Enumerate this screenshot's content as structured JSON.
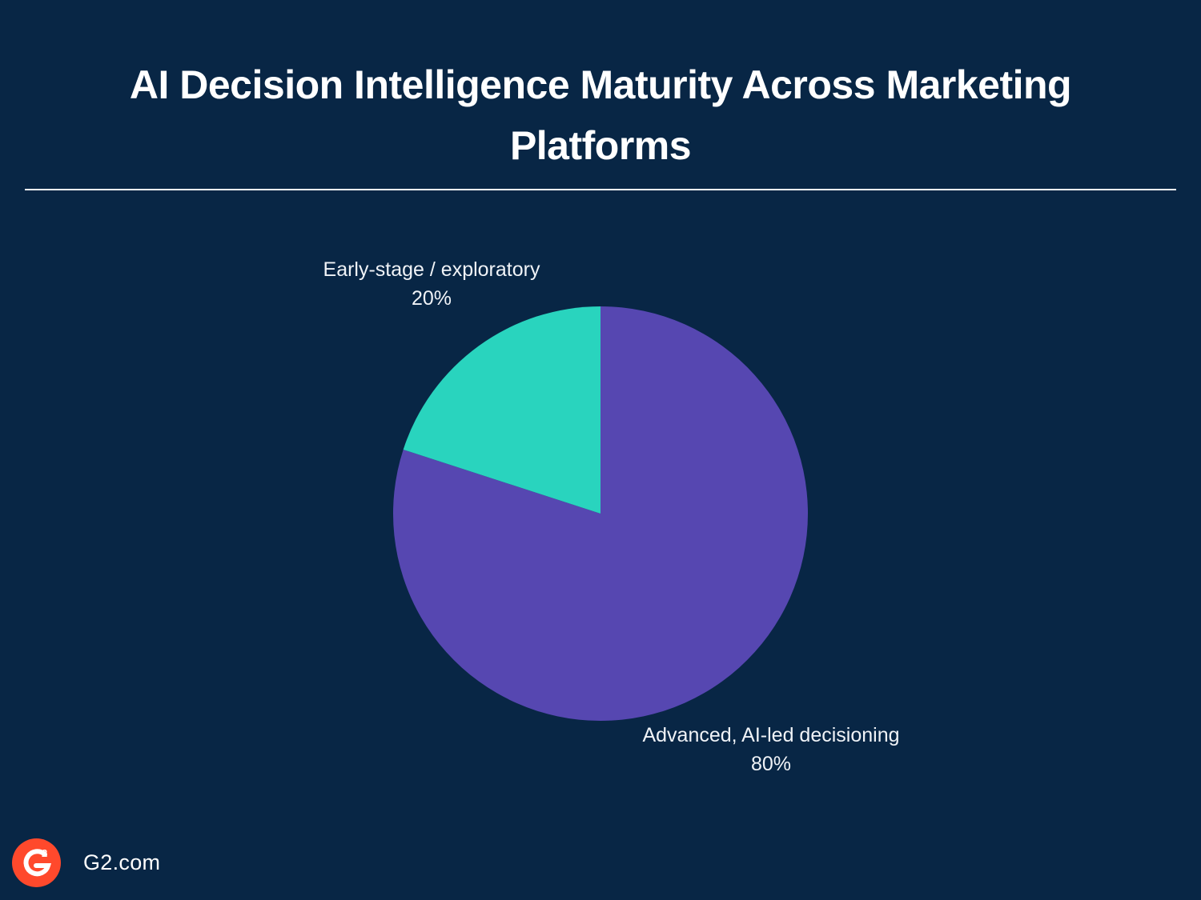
{
  "title": "AI Decision Intelligence Maturity Across Marketing Platforms",
  "footer": {
    "logo": "g2-logo",
    "site": "G2.com"
  },
  "colors": {
    "background": "#082645",
    "advanced": "#5647b1",
    "early": "#29d4be",
    "logo": "#ff492c"
  },
  "chart_data": {
    "type": "pie",
    "title": "AI Decision Intelligence Maturity Across Marketing Platforms",
    "slices": [
      {
        "label": "Advanced, AI-led decisioning",
        "value": 80,
        "value_label": "80%",
        "color": "#5647b1"
      },
      {
        "label": "Early-stage / exploratory",
        "value": 20,
        "value_label": "20%",
        "color": "#29d4be"
      }
    ],
    "start_angle": "12 o'clock",
    "direction": "clockwise",
    "legend": "none",
    "labels": "outside"
  }
}
